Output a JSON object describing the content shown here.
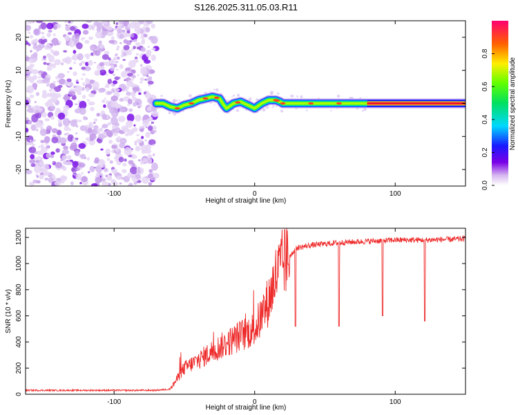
{
  "title": "S126.2025.311.05.03.R11",
  "chart_data": [
    {
      "type": "heatmap",
      "xlabel": "Height of straight line (km)",
      "ylabel": "Frequency (Hz)",
      "xlim": [
        -163,
        150
      ],
      "ylim": [
        -25,
        25
      ],
      "xticks": [
        -100,
        0,
        100
      ],
      "yticks": [
        -20,
        -10,
        0,
        10,
        20
      ],
      "noise_region_x": [
        -163,
        -70
      ],
      "signal_start_x": -70,
      "ridge": {
        "x": [
          -70,
          -65,
          -60,
          -55,
          -50,
          -45,
          -40,
          -35,
          -30,
          -25,
          -22,
          -20,
          -15,
          -10,
          -5,
          0,
          5,
          10,
          15,
          18,
          20,
          30,
          40,
          60,
          80,
          100,
          120,
          150
        ],
        "freq": [
          0,
          0,
          -1,
          -1.5,
          -0.5,
          0,
          1,
          1.5,
          2,
          1.5,
          -0.5,
          -1.5,
          0,
          0.5,
          -0.5,
          -1.5,
          0,
          1,
          1,
          0.5,
          0,
          0,
          0,
          0,
          0,
          0,
          0,
          0
        ]
      },
      "colorbar": {
        "label": "Normalized spectral amplitude",
        "range": [
          0,
          1
        ],
        "ticks": [
          0.0,
          0.2,
          0.4,
          0.6,
          0.8
        ]
      }
    },
    {
      "type": "line",
      "xlabel": "Height of straight line (km)",
      "ylabel": "SNR (10 * v/v)",
      "xlim": [
        -163,
        150
      ],
      "ylim": [
        0,
        1270
      ],
      "xticks": [
        -100,
        0,
        100
      ],
      "yticks": [
        0,
        200,
        400,
        600,
        800,
        1000,
        1200
      ],
      "series": [
        {
          "name": "SNR",
          "color": "#ee2a2a",
          "x": [
            -163,
            -70,
            -60,
            -55,
            -50,
            -40,
            -30,
            -20,
            -10,
            0,
            5,
            10,
            15,
            20,
            25,
            30,
            40,
            50,
            60,
            80,
            100,
            120,
            140,
            150
          ],
          "y": [
            30,
            30,
            40,
            120,
            200,
            260,
            330,
            390,
            450,
            500,
            600,
            720,
            900,
            1000,
            1060,
            1120,
            1140,
            1150,
            1160,
            1170,
            1180,
            1180,
            1185,
            1190
          ],
          "dips": [
            {
              "x": 29,
              "y": 520
            },
            {
              "x": 60,
              "y": 520
            },
            {
              "x": 91,
              "y": 600
            },
            {
              "x": 121,
              "y": 560
            }
          ]
        }
      ]
    }
  ]
}
